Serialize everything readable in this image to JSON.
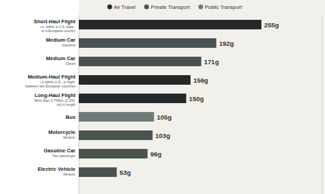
{
  "chart_data": {
    "type": "bar",
    "orientation": "horizontal",
    "categories": [
      "Short-Haul Flight",
      "Medium Car",
      "Medium Car",
      "Medium-Haul Flight",
      "Long-Haul Flight",
      "Bus",
      "Motorcycle",
      "Gasoline Car",
      "Electric Vehicle"
    ],
    "category_notes": [
      "i.e. within a U.S. state, or a European country",
      "Gasoline",
      "Diesel",
      "i.e within U.S., or flight between two European countries",
      "More than 3,700km (2,300 mi) in length",
      null,
      "Medium",
      "Two passenger",
      "Medium"
    ],
    "series": [
      {
        "name": "Air Travel",
        "color": "#25292a",
        "values": [
          255,
          null,
          null,
          156,
          150,
          null,
          null,
          null,
          null
        ],
        "value_labels": [
          "255g",
          null,
          null,
          "156g",
          "150g",
          null,
          null,
          null,
          null
        ]
      },
      {
        "name": "Private Transport",
        "color": "#4b5351",
        "values": [
          null,
          192,
          171,
          null,
          null,
          null,
          103,
          96,
          53
        ],
        "value_labels": [
          null,
          "192g",
          "171g",
          null,
          null,
          null,
          "103g",
          "96g",
          "53g"
        ]
      },
      {
        "name": "Public Transport",
        "color": "#6e7c77",
        "values": [
          null,
          null,
          null,
          null,
          null,
          105,
          null,
          null,
          null
        ],
        "value_labels": [
          null,
          null,
          null,
          null,
          null,
          "105g",
          null,
          null,
          null
        ]
      }
    ],
    "xlim": [
      0,
      340
    ],
    "data_labels": true,
    "tick_labels": false,
    "legend": "top"
  }
}
